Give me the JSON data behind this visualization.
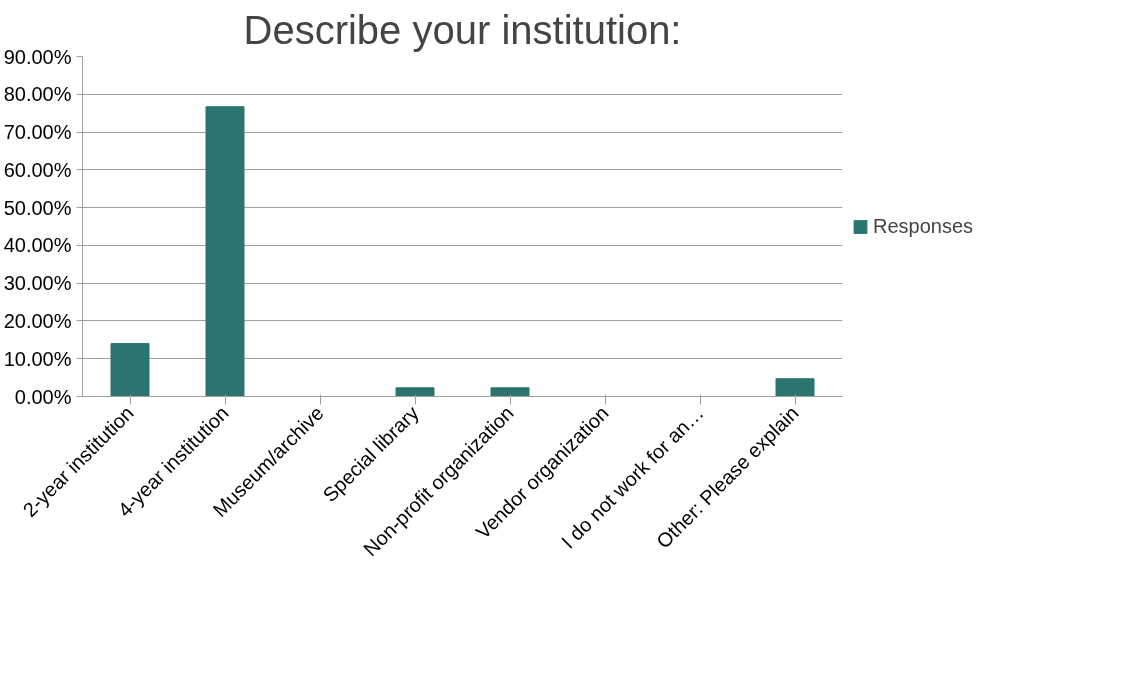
{
  "chart_data": {
    "type": "bar",
    "title": "Describe your institution:",
    "categories": [
      "2-year institution",
      "4-year institution",
      "Museum/archive",
      "Special library",
      "Non-profit organization",
      "Vendor organization",
      "I do not work for an…",
      "Other: Please explain"
    ],
    "series": [
      {
        "name": "Responses",
        "color": "#2a7570",
        "values": [
          14,
          76.7,
          0,
          2.3,
          2.3,
          0,
          0,
          4.7
        ]
      }
    ],
    "ylim": [
      0,
      90
    ],
    "yticks": [
      {
        "value": 0,
        "label": "0.00%"
      },
      {
        "value": 10,
        "label": "10.00%"
      },
      {
        "value": 20,
        "label": "20.00%"
      },
      {
        "value": 30,
        "label": "30.00%"
      },
      {
        "value": 40,
        "label": "40.00%"
      },
      {
        "value": 50,
        "label": "50.00%"
      },
      {
        "value": 60,
        "label": "60.00%"
      },
      {
        "value": 70,
        "label": "70.00%"
      },
      {
        "value": 80,
        "label": "80.00%"
      },
      {
        "value": 90,
        "label": "90.00%"
      }
    ],
    "grid": "y",
    "legend": "right"
  }
}
